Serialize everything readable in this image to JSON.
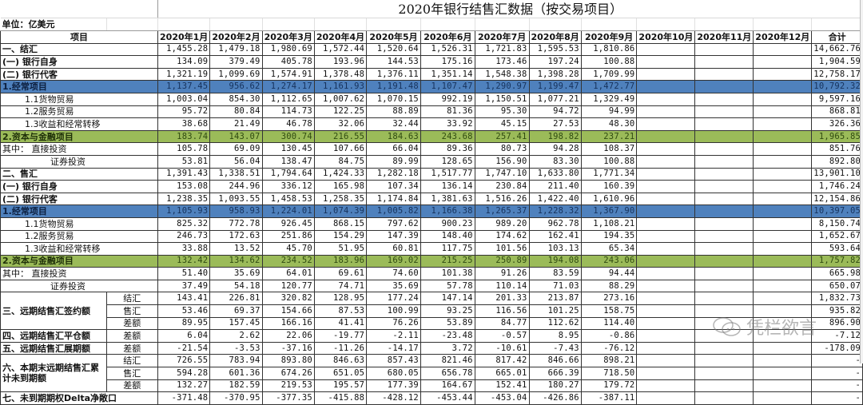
{
  "sheet": {
    "title": "2020年银行结售汇数据（按交易项目）",
    "unit": "单位：亿美元",
    "headers": {
      "item": "项目",
      "months": [
        "2020年1月",
        "2020年2月",
        "2020年3月",
        "2020年4月",
        "2020年5月",
        "2020年6月",
        "2020年7月",
        "2020年8月",
        "2020年9月",
        "2020年10月",
        "2020年11月",
        "2020年12月"
      ],
      "total": "合计"
    },
    "rows": [
      {
        "label": "一、结汇",
        "style": "bold",
        "values": [
          "1,455.28",
          "1,479.18",
          "1,980.69",
          "1,572.44",
          "1,520.64",
          "1,526.31",
          "1,721.83",
          "1,595.53",
          "1,810.86",
          "",
          "",
          ""
        ],
        "total": "14,662.76"
      },
      {
        "label": "(一) 银行自身",
        "style": "bold",
        "values": [
          "134.09",
          "379.49",
          "405.78",
          "193.96",
          "144.53",
          "175.16",
          "173.46",
          "197.24",
          "100.88",
          "",
          "",
          ""
        ],
        "total": "1,904.59"
      },
      {
        "label": "(二) 银行代客",
        "style": "bold",
        "values": [
          "1,321.19",
          "1,099.69",
          "1,574.91",
          "1,378.48",
          "1,376.11",
          "1,351.14",
          "1,548.38",
          "1,398.28",
          "1,709.99",
          "",
          "",
          ""
        ],
        "total": "12,758.17"
      },
      {
        "label": "1.经常项目",
        "style": "blue",
        "values": [
          "1,137.45",
          "956.62",
          "1,274.17",
          "1,161.93",
          "1,191.48",
          "1,107.47",
          "1,290.97",
          "1,199.47",
          "1,472.77",
          "",
          "",
          ""
        ],
        "total": "10,792.32"
      },
      {
        "label": "1.1货物贸易",
        "style": "sub",
        "values": [
          "1,003.04",
          "854.30",
          "1,112.65",
          "1,007.62",
          "1,070.15",
          "992.19",
          "1,150.51",
          "1,077.21",
          "1,329.49",
          "",
          "",
          ""
        ],
        "total": "9,597.16"
      },
      {
        "label": "1.2服务贸易",
        "style": "sub",
        "values": [
          "95.72",
          "80.84",
          "114.73",
          "122.25",
          "88.89",
          "81.36",
          "95.30",
          "94.72",
          "94.99",
          "",
          "",
          ""
        ],
        "total": "868.81"
      },
      {
        "label": "1.3收益和经常转移",
        "style": "sub",
        "values": [
          "38.68",
          "21.49",
          "46.78",
          "32.06",
          "32.44",
          "33.92",
          "45.15",
          "27.53",
          "48.30",
          "",
          "",
          ""
        ],
        "total": "326.36"
      },
      {
        "label": "2.资本与金融项目",
        "style": "green",
        "values": [
          "183.74",
          "143.07",
          "300.74",
          "216.55",
          "184.63",
          "243.68",
          "257.41",
          "198.82",
          "237.21",
          "",
          "",
          ""
        ],
        "total": "1,965.85"
      },
      {
        "label": "其中：  直接投资",
        "style": "thin",
        "values": [
          "105.78",
          "69.09",
          "130.45",
          "107.66",
          "66.04",
          "89.36",
          "80.73",
          "94.28",
          "108.37",
          "",
          "",
          ""
        ],
        "total": "851.76"
      },
      {
        "label": "证券投资",
        "style": "sub3",
        "values": [
          "53.81",
          "56.04",
          "138.47",
          "84.75",
          "89.99",
          "128.65",
          "156.90",
          "83.30",
          "100.88",
          "",
          "",
          ""
        ],
        "total": "892.80"
      },
      {
        "label": "二、售汇",
        "style": "bold",
        "values": [
          "1,391.43",
          "1,338.51",
          "1,794.64",
          "1,424.33",
          "1,282.18",
          "1,517.77",
          "1,747.10",
          "1,633.80",
          "1,771.34",
          "",
          "",
          ""
        ],
        "total": "13,901.10"
      },
      {
        "label": "(一) 银行自身",
        "style": "bold",
        "values": [
          "153.08",
          "244.96",
          "336.12",
          "165.98",
          "107.34",
          "136.14",
          "230.84",
          "211.40",
          "160.39",
          "",
          "",
          ""
        ],
        "total": "1,746.24"
      },
      {
        "label": "(二) 银行代客",
        "style": "bold",
        "values": [
          "1,238.35",
          "1,093.55",
          "1,458.53",
          "1,258.35",
          "1,174.84",
          "1,381.63",
          "1,516.26",
          "1,422.40",
          "1,610.96",
          "",
          "",
          ""
        ],
        "total": "12,154.86"
      },
      {
        "label": "1.经常项目",
        "style": "blue",
        "values": [
          "1,105.93",
          "958.93",
          "1,224.01",
          "1,074.39",
          "1,005.82",
          "1,166.38",
          "1,265.37",
          "1,228.32",
          "1,367.90",
          "",
          "",
          ""
        ],
        "total": "10,397.05"
      },
      {
        "label": "1.1货物贸易",
        "style": "sub",
        "values": [
          "825.32",
          "772.78",
          "926.45",
          "868.15",
          "797.62",
          "900.23",
          "989.20",
          "962.78",
          "1,108.21",
          "",
          "",
          ""
        ],
        "total": "8,150.74"
      },
      {
        "label": "1.2服务贸易",
        "style": "sub",
        "values": [
          "246.73",
          "172.63",
          "251.86",
          "154.29",
          "147.39",
          "148.40",
          "174.62",
          "162.41",
          "194.35",
          "",
          "",
          ""
        ],
        "total": "1,652.67"
      },
      {
        "label": "1.3收益和经常转移",
        "style": "sub",
        "values": [
          "33.88",
          "13.52",
          "45.70",
          "51.95",
          "60.81",
          "117.75",
          "101.56",
          "103.13",
          "65.34",
          "",
          "",
          ""
        ],
        "total": "593.64"
      },
      {
        "label": "2.资本与金融项目",
        "style": "green",
        "values": [
          "132.42",
          "134.62",
          "234.52",
          "183.96",
          "169.02",
          "215.25",
          "250.89",
          "194.08",
          "243.06",
          "",
          "",
          ""
        ],
        "total": "1,757.82"
      },
      {
        "label": "其中：  直接投资",
        "style": "thin",
        "values": [
          "51.40",
          "35.69",
          "64.01",
          "69.61",
          "74.60",
          "101.38",
          "91.26",
          "83.59",
          "94.44",
          "",
          "",
          ""
        ],
        "total": "665.98"
      },
      {
        "label": "证券投资",
        "style": "sub3",
        "values": [
          "37.49",
          "54.18",
          "120.77",
          "74.71",
          "35.69",
          "57.78",
          "110.14",
          "71.03",
          "88.29",
          "",
          "",
          ""
        ],
        "total": "650.07"
      }
    ],
    "forward_groups": [
      {
        "label": "三、远期结售汇签约额",
        "rows": [
          {
            "kind": "结汇",
            "values": [
              "143.41",
              "226.81",
              "320.82",
              "128.95",
              "177.24",
              "147.14",
              "201.33",
              "213.87",
              "273.16",
              "",
              "",
              ""
            ],
            "total": "1,832.73"
          },
          {
            "kind": "售汇",
            "values": [
              "53.46",
              "69.37",
              "154.66",
              "87.53",
              "100.99",
              "93.25",
              "116.56",
              "101.25",
              "158.75",
              "",
              "",
              ""
            ],
            "total": "935.82"
          },
          {
            "kind": "差额",
            "values": [
              "89.95",
              "157.45",
              "166.16",
              "41.41",
              "76.26",
              "53.89",
              "84.77",
              "112.62",
              "114.40",
              "",
              "",
              ""
            ],
            "total": "896.90"
          }
        ]
      },
      {
        "label": "四、远期结售汇平仓额",
        "rows": [
          {
            "kind": "差额",
            "values": [
              "6.04",
              "2.62",
              "22.06",
              "-19.77",
              "-2.11",
              "-23.48",
              "-0.57",
              "8.95",
              "-0.86",
              "",
              "",
              ""
            ],
            "total": "-7.12"
          }
        ]
      },
      {
        "label": "五、远期结售汇展期额",
        "rows": [
          {
            "kind": "差额",
            "values": [
              "-21.54",
              "-3.53",
              "-37.16",
              "-11.26",
              "-14.17",
              "3.72",
              "-10.61",
              "-7.43",
              "-76.12",
              "",
              "",
              ""
            ],
            "total": "-178.09"
          }
        ]
      },
      {
        "label": "六、本期末远期结售汇累计未到期额",
        "rows": [
          {
            "kind": "结汇",
            "values": [
              "726.55",
              "783.94",
              "893.80",
              "846.63",
              "857.43",
              "821.46",
              "817.42",
              "846.66",
              "898.21",
              "",
              "",
              ""
            ],
            "total": "-"
          },
          {
            "kind": "售汇",
            "values": [
              "594.28",
              "601.36",
              "674.26",
              "651.05",
              "680.05",
              "656.78",
              "665.01",
              "666.39",
              "718.50",
              "",
              "",
              ""
            ],
            "total": "-"
          },
          {
            "kind": "差额",
            "values": [
              "132.27",
              "182.59",
              "219.53",
              "195.57",
              "177.39",
              "164.67",
              "152.41",
              "180.27",
              "179.72",
              "",
              "",
              ""
            ],
            "total": "-"
          }
        ]
      }
    ],
    "delta_row": {
      "label": "七、未到期期权Delta净敞口",
      "values": [
        "-371.48",
        "-370.95",
        "-377.35",
        "-415.88",
        "-428.12",
        "-453.44",
        "-453.04",
        "-426.86",
        "-387.11",
        "",
        "",
        ""
      ],
      "total": "-"
    },
    "colors": {
      "blue_row": "#4f81bd",
      "green_row": "#9bbb59",
      "grid": "#333333"
    }
  },
  "watermark": {
    "text": "凭栏欲言",
    "icon": "wechat-icon"
  }
}
